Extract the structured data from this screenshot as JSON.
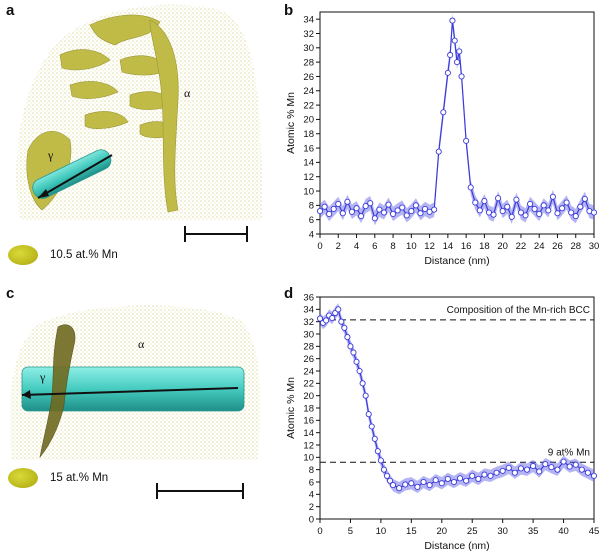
{
  "panels": {
    "a": {
      "letter": "a",
      "phase_alpha": "α",
      "phase_gamma": "γ",
      "legend": "10.5 at.% Mn"
    },
    "b": {
      "letter": "b"
    },
    "c": {
      "letter": "c",
      "phase_alpha": "α",
      "phase_gamma": "γ",
      "legend": "15 at.% Mn"
    },
    "d": {
      "letter": "d"
    }
  },
  "colors": {
    "profile": "#3b3bd9",
    "band": "#5a5ae6",
    "isosurface": "#c9c32a",
    "cylinder": "#3fd6c9"
  },
  "chart_data": [
    {
      "type": "line",
      "panel": "b",
      "xlabel": "Distance (nm)",
      "ylabel": "Atomic % Mn",
      "xlim": [
        0,
        30
      ],
      "ylim": [
        4,
        35
      ],
      "xticks": [
        0,
        2,
        4,
        6,
        8,
        10,
        12,
        14,
        16,
        18,
        20,
        22,
        24,
        26,
        28,
        30
      ],
      "yticks": [
        4,
        6,
        8,
        10,
        12,
        14,
        16,
        18,
        20,
        22,
        24,
        26,
        28,
        30,
        32,
        34
      ],
      "grid": false,
      "series": [
        {
          "x": [
            0,
            0.5,
            1,
            1.5,
            2,
            2.5,
            3,
            3.5,
            4,
            4.5,
            5,
            5.5,
            6,
            6.5,
            7,
            7.5,
            8,
            8.5,
            9,
            9.5,
            10,
            10.5,
            11,
            11.5,
            12,
            12.5,
            13,
            13.5,
            14,
            14.25,
            14.5,
            14.75,
            15,
            15.25,
            15.5,
            16,
            16.5,
            17,
            17.5,
            18,
            18.5,
            19,
            19.5,
            20,
            20.5,
            21,
            21.5,
            22,
            22.5,
            23,
            23.5,
            24,
            24.5,
            25,
            25.5,
            26,
            26.5,
            27,
            27.5,
            28,
            28.5,
            29,
            29.5,
            30
          ],
          "y": [
            7.2,
            7.8,
            6.8,
            7.5,
            8.2,
            6.9,
            8.5,
            7.1,
            7.6,
            6.5,
            7.9,
            8.3,
            6.2,
            7.4,
            7.0,
            8.1,
            6.8,
            7.3,
            7.7,
            6.6,
            7.2,
            8.0,
            6.9,
            7.5,
            7.1,
            7.4,
            15.5,
            21.0,
            26.5,
            29.0,
            33.8,
            31.0,
            28.0,
            29.5,
            26.0,
            17.0,
            10.5,
            8.4,
            7.3,
            8.6,
            7.0,
            6.7,
            9.0,
            7.2,
            7.8,
            6.4,
            8.8,
            7.0,
            6.6,
            8.2,
            7.5,
            6.8,
            8.0,
            7.3,
            9.2,
            6.9,
            7.6,
            8.4,
            7.0,
            6.5,
            7.8,
            8.9,
            7.2,
            7.0
          ]
        }
      ]
    },
    {
      "type": "line",
      "panel": "d",
      "xlabel": "Distance (nm)",
      "ylabel": "Atomic % Mn",
      "xlim": [
        0,
        45
      ],
      "ylim": [
        0,
        36
      ],
      "xticks": [
        0,
        5,
        10,
        15,
        20,
        25,
        30,
        35,
        40,
        45
      ],
      "yticks": [
        0,
        2,
        4,
        6,
        8,
        10,
        12,
        14,
        16,
        18,
        20,
        22,
        24,
        26,
        28,
        30,
        32,
        34,
        36
      ],
      "grid": false,
      "reference_lines": [
        {
          "y": 32.3,
          "label": "Composition of the Mn-rich BCC"
        },
        {
          "y": 9.2,
          "label": "9 at% Mn"
        }
      ],
      "series": [
        {
          "x": [
            0,
            0.5,
            1,
            1.5,
            2,
            2.5,
            3,
            3.5,
            4,
            4.5,
            5,
            5.5,
            6,
            6.5,
            7,
            7.5,
            8,
            8.5,
            9,
            9.5,
            10,
            10.5,
            11,
            11.5,
            12,
            13,
            14,
            15,
            16,
            17,
            18,
            19,
            20,
            21,
            22,
            23,
            24,
            25,
            26,
            27,
            28,
            29,
            30,
            31,
            32,
            33,
            34,
            35,
            36,
            37,
            38,
            39,
            40,
            41,
            42,
            43,
            44,
            45
          ],
          "y": [
            32.5,
            31.8,
            32.2,
            33.0,
            32.6,
            33.4,
            34.0,
            32.0,
            31.0,
            29.5,
            28.0,
            27.0,
            25.5,
            24.0,
            22.0,
            20.0,
            17.0,
            15.0,
            13.0,
            11.0,
            9.5,
            8.0,
            7.0,
            6.2,
            5.5,
            5.0,
            5.6,
            5.8,
            5.2,
            6.0,
            5.5,
            6.3,
            5.8,
            6.5,
            6.0,
            6.6,
            6.2,
            7.0,
            6.5,
            7.2,
            7.0,
            7.5,
            7.8,
            8.3,
            7.5,
            8.2,
            8.0,
            8.6,
            7.7,
            8.9,
            8.4,
            8.0,
            9.3,
            8.5,
            8.8,
            8.0,
            7.5,
            7.0
          ]
        }
      ]
    }
  ]
}
